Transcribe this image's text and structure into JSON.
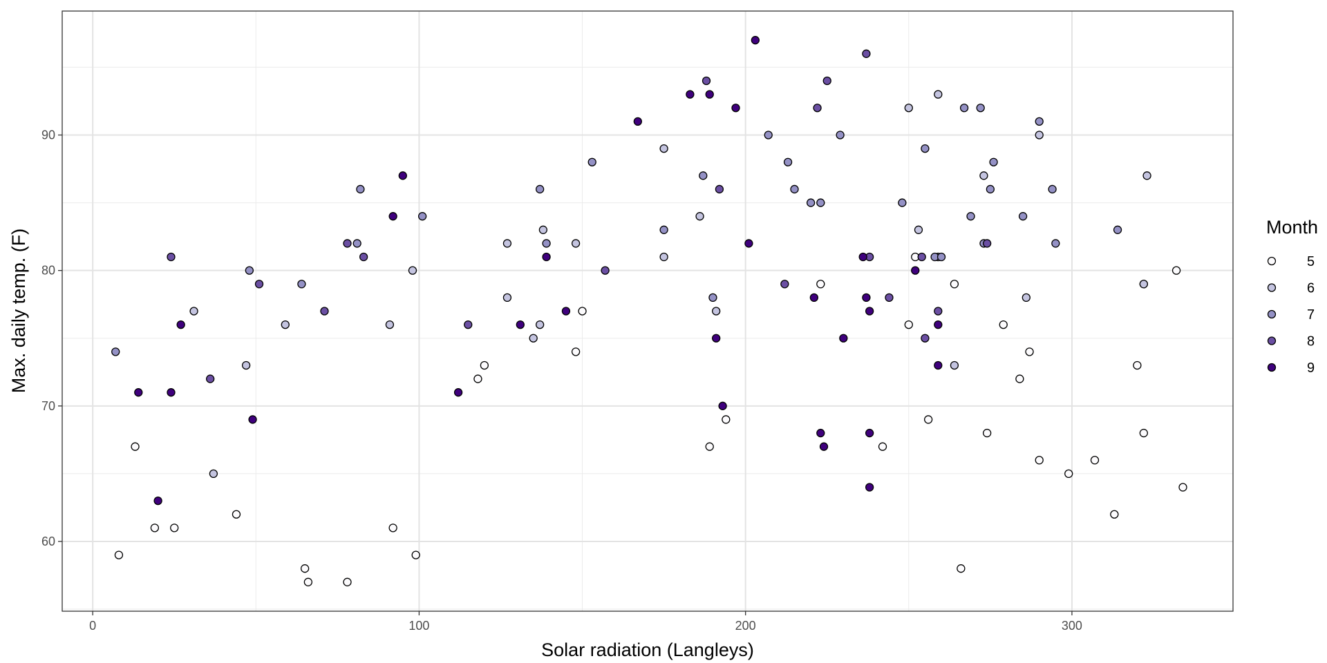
{
  "chart_data": {
    "type": "scatter",
    "title": "",
    "xlabel": "Solar radiation (Langleys)",
    "ylabel": "Max. daily temp. (F)",
    "xlim": [
      -9.35,
      349.35
    ],
    "ylim": [
      54.85,
      99.15
    ],
    "x_ticks": [
      0,
      100,
      200,
      300
    ],
    "y_ticks": [
      60,
      70,
      80,
      90
    ],
    "grid": true,
    "legend": {
      "title": "Month",
      "position": "right"
    },
    "colors": {
      "5": "#fcfbfd",
      "6": "#c4c4e0",
      "7": "#9491c5",
      "8": "#6b4fa3",
      "9": "#3f007d"
    },
    "series": [
      {
        "name": "5",
        "points": [
          [
            8,
            59
          ],
          [
            13,
            67
          ],
          [
            19,
            61
          ],
          [
            25,
            61
          ],
          [
            44,
            62
          ],
          [
            65,
            58
          ],
          [
            66,
            57
          ],
          [
            78,
            57
          ],
          [
            92,
            61
          ],
          [
            99,
            59
          ],
          [
            118,
            72
          ],
          [
            120,
            73
          ],
          [
            148,
            74
          ],
          [
            150,
            77
          ],
          [
            189,
            67
          ],
          [
            194,
            69
          ],
          [
            223,
            79
          ],
          [
            242,
            67
          ],
          [
            250,
            76
          ],
          [
            252,
            81
          ],
          [
            256,
            69
          ],
          [
            264,
            79
          ],
          [
            266,
            58
          ],
          [
            274,
            68
          ],
          [
            279,
            76
          ],
          [
            284,
            72
          ],
          [
            287,
            74
          ],
          [
            290,
            66
          ],
          [
            299,
            65
          ],
          [
            307,
            66
          ],
          [
            313,
            62
          ],
          [
            320,
            73
          ],
          [
            322,
            68
          ],
          [
            322,
            79
          ],
          [
            332,
            80
          ],
          [
            334,
            64
          ]
        ]
      },
      {
        "name": "6",
        "points": [
          [
            31,
            77
          ],
          [
            37,
            65
          ],
          [
            47,
            73
          ],
          [
            59,
            76
          ],
          [
            91,
            76
          ],
          [
            98,
            80
          ],
          [
            127,
            78
          ],
          [
            127,
            82
          ],
          [
            135,
            75
          ],
          [
            137,
            76
          ],
          [
            138,
            83
          ],
          [
            148,
            82
          ],
          [
            175,
            81
          ],
          [
            175,
            89
          ],
          [
            186,
            84
          ],
          [
            191,
            77
          ],
          [
            250,
            92
          ],
          [
            259,
            93
          ],
          [
            253,
            83
          ],
          [
            259,
            81
          ],
          [
            264,
            73
          ],
          [
            273,
            87
          ],
          [
            286,
            78
          ],
          [
            290,
            90
          ],
          [
            323,
            87
          ],
          [
            322,
            79
          ]
        ]
      },
      {
        "name": "7",
        "points": [
          [
            48,
            80
          ],
          [
            64,
            79
          ],
          [
            81,
            82
          ],
          [
            82,
            86
          ],
          [
            101,
            84
          ],
          [
            137,
            86
          ],
          [
            139,
            82
          ],
          [
            153,
            88
          ],
          [
            175,
            83
          ],
          [
            187,
            87
          ],
          [
            190,
            78
          ],
          [
            207,
            90
          ],
          [
            213,
            88
          ],
          [
            215,
            86
          ],
          [
            220,
            85
          ],
          [
            223,
            85
          ],
          [
            229,
            90
          ],
          [
            248,
            85
          ],
          [
            255,
            89
          ],
          [
            258,
            81
          ],
          [
            260,
            81
          ],
          [
            267,
            92
          ],
          [
            269,
            84
          ],
          [
            272,
            92
          ],
          [
            273,
            82
          ],
          [
            275,
            86
          ],
          [
            276,
            88
          ],
          [
            285,
            84
          ],
          [
            290,
            91
          ],
          [
            294,
            86
          ],
          [
            295,
            82
          ],
          [
            314,
            83
          ],
          [
            7,
            74
          ]
        ]
      },
      {
        "name": "8",
        "points": [
          [
            24,
            81
          ],
          [
            36,
            72
          ],
          [
            51,
            79
          ],
          [
            71,
            77
          ],
          [
            78,
            82
          ],
          [
            83,
            81
          ],
          [
            115,
            76
          ],
          [
            157,
            80
          ],
          [
            188,
            94
          ],
          [
            192,
            86
          ],
          [
            212,
            79
          ],
          [
            222,
            92
          ],
          [
            225,
            94
          ],
          [
            237,
            96
          ],
          [
            238,
            81
          ],
          [
            244,
            78
          ],
          [
            254,
            81
          ],
          [
            255,
            75
          ],
          [
            259,
            77
          ],
          [
            274,
            82
          ]
        ]
      },
      {
        "name": "9",
        "points": [
          [
            14,
            71
          ],
          [
            20,
            63
          ],
          [
            24,
            71
          ],
          [
            27,
            76
          ],
          [
            49,
            69
          ],
          [
            92,
            84
          ],
          [
            95,
            87
          ],
          [
            112,
            71
          ],
          [
            131,
            76
          ],
          [
            139,
            81
          ],
          [
            145,
            77
          ],
          [
            167,
            91
          ],
          [
            183,
            93
          ],
          [
            189,
            93
          ],
          [
            191,
            75
          ],
          [
            193,
            70
          ],
          [
            197,
            92
          ],
          [
            201,
            82
          ],
          [
            203,
            97
          ],
          [
            221,
            78
          ],
          [
            223,
            68
          ],
          [
            224,
            67
          ],
          [
            230,
            75
          ],
          [
            236,
            81
          ],
          [
            237,
            78
          ],
          [
            238,
            77
          ],
          [
            238,
            68
          ],
          [
            238,
            64
          ],
          [
            252,
            80
          ],
          [
            259,
            73
          ],
          [
            259,
            76
          ]
        ]
      }
    ]
  }
}
